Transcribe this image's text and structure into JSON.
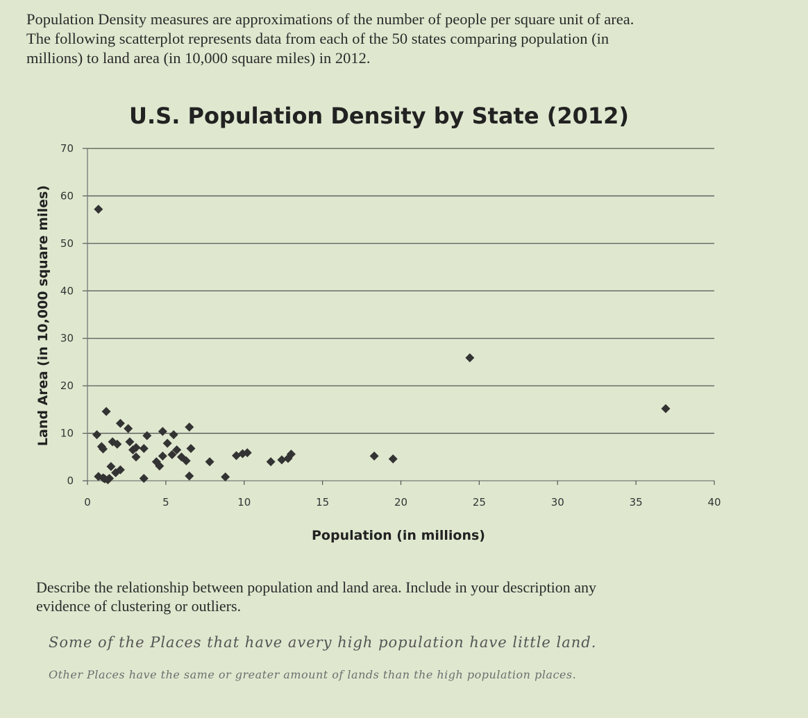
{
  "intro": {
    "line1": "Population Density measures are approximations of the number of people per square unit of area.",
    "line2": "The following scatterplot represents data from each of the 50 states comparing population (in",
    "line3": "millions) to land area (in 10,000 square miles) in 2012."
  },
  "question": {
    "line1": "Describe the relationship between population and land area.  Include in your description any",
    "line2": "evidence of clustering or outliers."
  },
  "answer": {
    "line1": "Some of the Places that have avery high population have little land.",
    "line2": "Other Places have the same or greater amount of lands than the high population places."
  },
  "chart_data": {
    "type": "scatter",
    "title": "U.S. Population Density by State (2012)",
    "xlabel": "Population (in millions)",
    "ylabel": "Land Area (in 10,000 square miles)",
    "xlim": [
      0,
      40
    ],
    "ylim": [
      0,
      70
    ],
    "xticks": [
      0,
      5,
      10,
      15,
      20,
      25,
      30,
      35,
      40
    ],
    "yticks": [
      0,
      10,
      20,
      30,
      40,
      50,
      60,
      70
    ],
    "grid": "horizontal",
    "marker_color": "#333333",
    "points": [
      {
        "x": 0.7,
        "y": 57.2
      },
      {
        "x": 0.6,
        "y": 9.7
      },
      {
        "x": 0.9,
        "y": 7.2
      },
      {
        "x": 1.0,
        "y": 6.7
      },
      {
        "x": 1.2,
        "y": 14.6
      },
      {
        "x": 0.7,
        "y": 0.9
      },
      {
        "x": 1.0,
        "y": 0.6
      },
      {
        "x": 1.3,
        "y": 0.2
      },
      {
        "x": 1.4,
        "y": 0.5
      },
      {
        "x": 1.1,
        "y": 0.4
      },
      {
        "x": 1.5,
        "y": 3.0
      },
      {
        "x": 1.6,
        "y": 8.2
      },
      {
        "x": 1.9,
        "y": 7.7
      },
      {
        "x": 1.8,
        "y": 1.7
      },
      {
        "x": 2.1,
        "y": 2.3
      },
      {
        "x": 2.1,
        "y": 12.1
      },
      {
        "x": 2.6,
        "y": 11.0
      },
      {
        "x": 2.7,
        "y": 8.2
      },
      {
        "x": 3.1,
        "y": 5.0
      },
      {
        "x": 2.9,
        "y": 6.5
      },
      {
        "x": 3.1,
        "y": 7.0
      },
      {
        "x": 3.6,
        "y": 0.5
      },
      {
        "x": 3.6,
        "y": 6.8
      },
      {
        "x": 3.8,
        "y": 9.5
      },
      {
        "x": 4.4,
        "y": 4.0
      },
      {
        "x": 4.6,
        "y": 3.1
      },
      {
        "x": 4.8,
        "y": 5.2
      },
      {
        "x": 4.8,
        "y": 10.4
      },
      {
        "x": 5.1,
        "y": 7.9
      },
      {
        "x": 5.4,
        "y": 5.5
      },
      {
        "x": 5.5,
        "y": 9.7
      },
      {
        "x": 5.7,
        "y": 6.5
      },
      {
        "x": 6.0,
        "y": 5.0
      },
      {
        "x": 6.3,
        "y": 4.2
      },
      {
        "x": 6.5,
        "y": 1.0
      },
      {
        "x": 6.5,
        "y": 11.3
      },
      {
        "x": 6.6,
        "y": 6.8
      },
      {
        "x": 7.8,
        "y": 4.0
      },
      {
        "x": 8.8,
        "y": 0.8
      },
      {
        "x": 9.5,
        "y": 5.3
      },
      {
        "x": 9.9,
        "y": 5.7
      },
      {
        "x": 10.2,
        "y": 5.9
      },
      {
        "x": 11.7,
        "y": 4.0
      },
      {
        "x": 12.4,
        "y": 4.4
      },
      {
        "x": 12.8,
        "y": 4.7
      },
      {
        "x": 13.0,
        "y": 5.6
      },
      {
        "x": 18.3,
        "y": 5.2
      },
      {
        "x": 19.5,
        "y": 4.6
      },
      {
        "x": 24.4,
        "y": 25.9
      },
      {
        "x": 36.9,
        "y": 15.2
      }
    ]
  }
}
